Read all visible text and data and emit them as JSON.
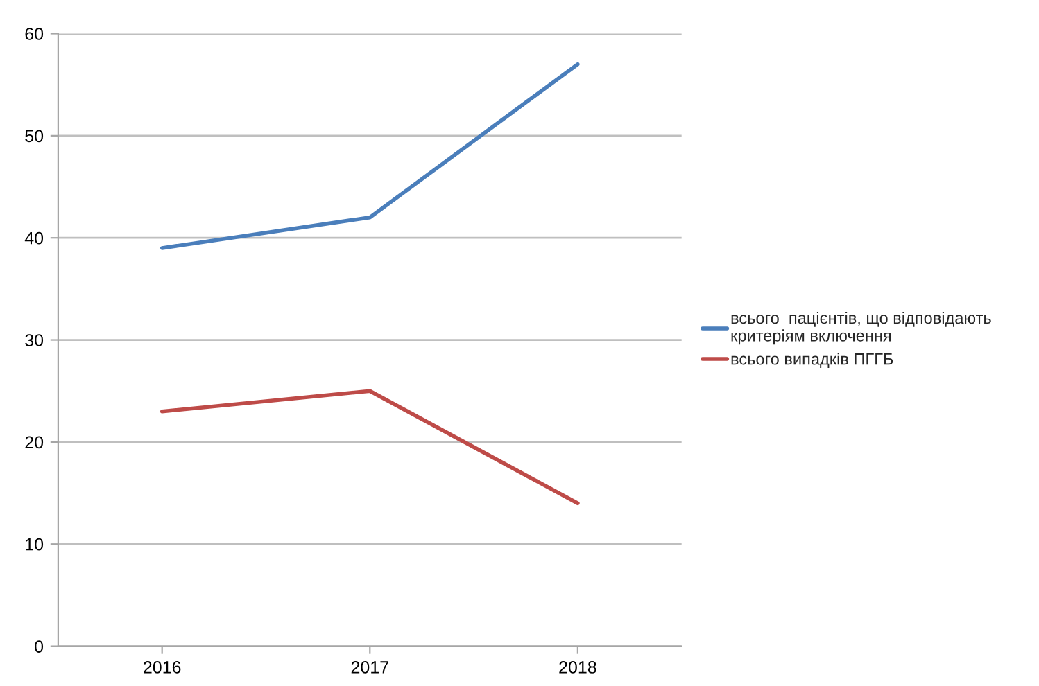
{
  "chart_data": {
    "type": "line",
    "categories": [
      "2016",
      "2017",
      "2018"
    ],
    "series": [
      {
        "name": "всього  пацієнтів, що відповідають\nкритеріям включення",
        "color": "#4a7ebb",
        "values": [
          39,
          42,
          57
        ]
      },
      {
        "name": "всього випадків ПГГБ",
        "color": "#be4b48",
        "values": [
          23,
          25,
          14
        ]
      }
    ],
    "ylim": [
      0,
      60
    ],
    "yticks": [
      0,
      10,
      20,
      30,
      40,
      50,
      60
    ],
    "grid": "y",
    "legend": "right",
    "marker": "none",
    "line_style": "solid"
  }
}
